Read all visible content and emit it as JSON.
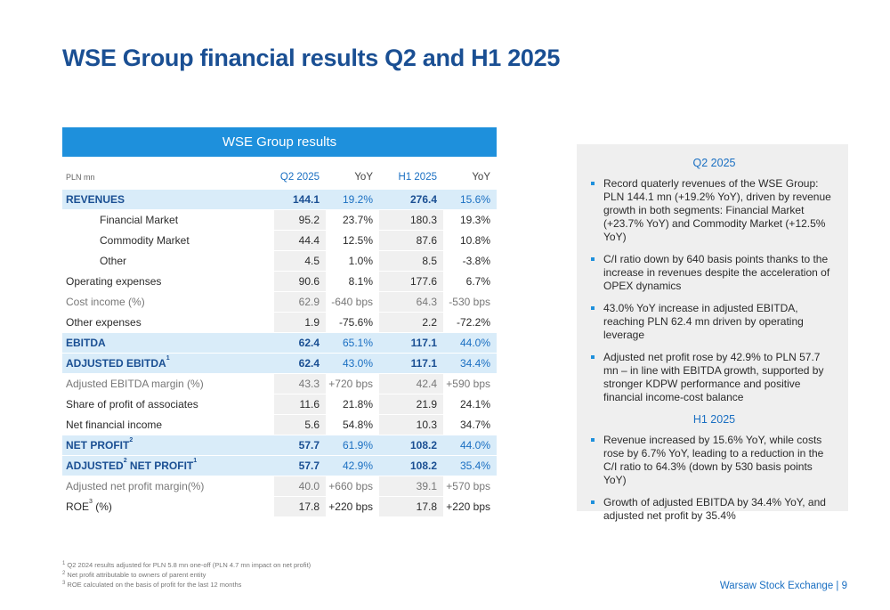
{
  "title": "WSE Group financial results Q2 and H1 2025",
  "table": {
    "header": "WSE Group results",
    "col_unit": "PLN mn",
    "col_q2": "Q2 2025",
    "col_yoy1": "YoY",
    "col_h1": "H1 2025",
    "col_yoy2": "YoY",
    "rows": [
      {
        "label": "REVENUES",
        "sup": "",
        "q2": "144.1",
        "yoy1": "19.2%",
        "h1": "276.4",
        "yoy2": "15.6%"
      },
      {
        "label": "Financial Market",
        "sup": "",
        "q2": "95.2",
        "yoy1": "23.7%",
        "h1": "180.3",
        "yoy2": "19.3%"
      },
      {
        "label": "Commodity Market",
        "sup": "",
        "q2": "44.4",
        "yoy1": "12.5%",
        "h1": "87.6",
        "yoy2": "10.8%"
      },
      {
        "label": "Other",
        "sup": "",
        "q2": "4.5",
        "yoy1": "1.0%",
        "h1": "8.5",
        "yoy2": "-3.8%"
      },
      {
        "label": "Operating expenses",
        "sup": "",
        "q2": "90.6",
        "yoy1": "8.1%",
        "h1": "177.6",
        "yoy2": "6.7%"
      },
      {
        "label": "Cost income (%)",
        "sup": "",
        "q2": "62.9",
        "yoy1": "-640 bps",
        "h1": "64.3",
        "yoy2": "-530 bps"
      },
      {
        "label": "Other expenses",
        "sup": "",
        "q2": "1.9",
        "yoy1": "-75.6%",
        "h1": "2.2",
        "yoy2": "-72.2%"
      },
      {
        "label": "EBITDA",
        "sup": "",
        "q2": "62.4",
        "yoy1": "65.1%",
        "h1": "117.1",
        "yoy2": "44.0%"
      },
      {
        "label": "ADJUSTED EBITDA",
        "sup": "1",
        "q2": "62.4",
        "yoy1": "43.0%",
        "h1": "117.1",
        "yoy2": "34.4%"
      },
      {
        "label": "Adjusted EBITDA margin (%)",
        "sup": "",
        "q2": "43.3",
        "yoy1": "+720 bps",
        "h1": "42.4",
        "yoy2": "+590 bps"
      },
      {
        "label": "Share of profit of associates",
        "sup": "",
        "q2": "11.6",
        "yoy1": "21.8%",
        "h1": "21.9",
        "yoy2": "24.1%"
      },
      {
        "label": "Net financial income",
        "sup": "",
        "q2": "5.6",
        "yoy1": "54.8%",
        "h1": "10.3",
        "yoy2": "34.7%"
      },
      {
        "label": "NET PROFIT",
        "sup": "2",
        "q2": "57.7",
        "yoy1": "61.9%",
        "h1": "108.2",
        "yoy2": "44.0%"
      },
      {
        "label_a": "ADJUSTED",
        "sup_a": "2",
        "label_b": " NET PROFIT",
        "sup": "1",
        "q2": "57.7",
        "yoy1": "42.9%",
        "h1": "108.2",
        "yoy2": "35.4%"
      },
      {
        "label": "Adjusted net profit margin(%)",
        "sup": "",
        "q2": "40.0",
        "yoy1": "+660 bps",
        "h1": "39.1",
        "yoy2": "+570 bps"
      },
      {
        "label_a": "ROE",
        "sup_a": "3",
        "label_b": " (%)",
        "sup": "",
        "q2": "17.8",
        "yoy1": "+220 bps",
        "h1": "17.8",
        "yoy2": "+220 bps"
      }
    ]
  },
  "panel": {
    "q2_title": "Q2 2025",
    "q2_bullets": [
      "Record quaterly revenues of the WSE Group: PLN 144.1 mn (+19.2% YoY), driven by revenue growth in both segments: Financial Market (+23.7% YoY) and Commodity Market (+12.5% YoY)",
      "C/I ratio down by 640 basis points thanks to the increase in revenues despite the acceleration of OPEX dynamics",
      "43.0% YoY increase in adjusted EBITDA, reaching PLN 62.4 mn driven by operating leverage",
      "Adjusted net profit rose by 42.9% to PLN 57.7 mn – in line with EBITDA growth, supported by stronger KDPW performance and positive financial income-cost balance"
    ],
    "h1_title": "H1 2025",
    "h1_bullets": [
      "Revenue increased by 15.6% YoY, while costs rose by 6.7% YoY, leading to a reduction in the C/I ratio to 64.3% (down by 530 basis points YoY)",
      "Growth of adjusted EBITDA by 34.4% YoY, and adjusted net profit by 35.4%"
    ]
  },
  "footnotes": [
    {
      "num": "1",
      "text": " Q2 2024 results adjusted for PLN 5.8 mn one-off (PLN 4.7 mn impact on net profit)"
    },
    {
      "num": "2",
      "text": "  Net profit attributable to owners of parent entity"
    },
    {
      "num": "3",
      "text": " ROE calculated on the basis of profit for the last 12 months"
    }
  ],
  "footer": "Warsaw Stock Exchange | 9"
}
